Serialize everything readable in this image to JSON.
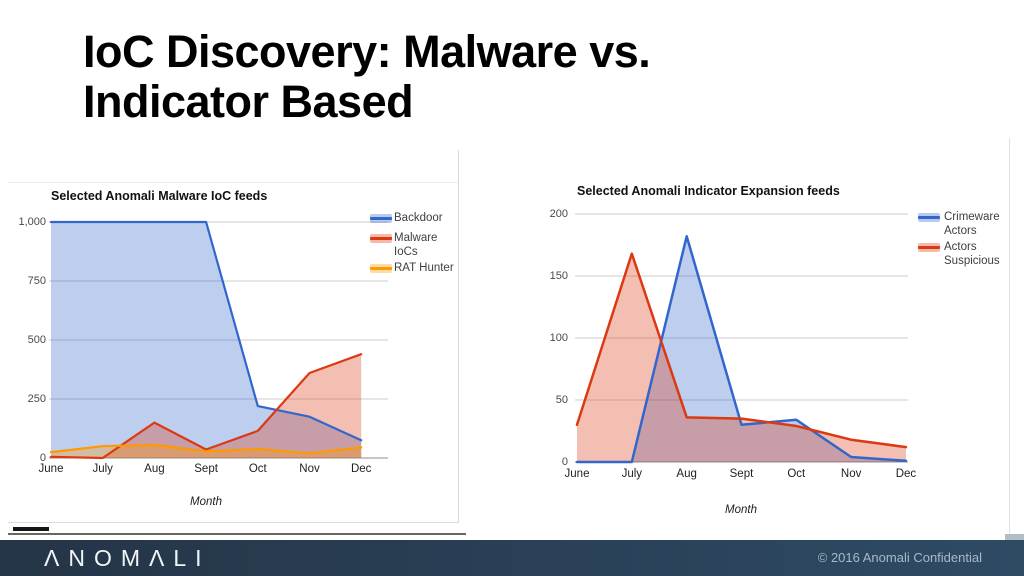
{
  "slide": {
    "title_line1": "IoC Discovery: Malware vs.",
    "title_line2": "Indicator Based"
  },
  "footer": {
    "logo_text": "ANOMALI",
    "copyright": "© 2016 Anomali Confidential",
    "bar_color_left": "#253447",
    "bar_color_right": "#2e4b64"
  },
  "chart_data": [
    {
      "type": "area",
      "title": "Selected Anomali Malware IoC feeds",
      "xlabel": "Month",
      "categories": [
        "June",
        "July",
        "Aug",
        "Sept",
        "Oct",
        "Nov",
        "Dec"
      ],
      "yticks": [
        "0",
        "250",
        "500",
        "750",
        "1,000"
      ],
      "ylim": [
        0,
        1000
      ],
      "grid": true,
      "legend_position": "right",
      "series": [
        {
          "name": "Backdoor",
          "legend_lines": [
            "Backdoor"
          ],
          "color": "#3366cc",
          "values": [
            1000,
            1000,
            1000,
            1000,
            220,
            175,
            75
          ]
        },
        {
          "name": "Malware IoCs",
          "legend_lines": [
            "Malware",
            "IoCs"
          ],
          "color": "#dc3912",
          "values": [
            5,
            0,
            150,
            36,
            115,
            360,
            440
          ]
        },
        {
          "name": "RAT Hunter",
          "legend_lines": [
            "RAT Hunter"
          ],
          "color": "#ff9900",
          "values": [
            25,
            50,
            55,
            28,
            38,
            20,
            45
          ]
        }
      ]
    },
    {
      "type": "area",
      "title": "Selected Anomali Indicator Expansion feeds",
      "xlabel": "Month",
      "categories": [
        "June",
        "July",
        "Aug",
        "Sept",
        "Oct",
        "Nov",
        "Dec"
      ],
      "yticks": [
        "0",
        "50",
        "100",
        "150",
        "200"
      ],
      "ylim": [
        0,
        200
      ],
      "grid": true,
      "legend_position": "right",
      "series": [
        {
          "name": "Crimeware Actors",
          "legend_lines": [
            "Crimeware",
            "Actors"
          ],
          "color": "#3366cc",
          "values": [
            0,
            0,
            182,
            30,
            34,
            4,
            1
          ]
        },
        {
          "name": "Actors Suspicious",
          "legend_lines": [
            "Actors",
            "Suspicious"
          ],
          "color": "#dc3912",
          "values": [
            30,
            168,
            36,
            35,
            29,
            18,
            12
          ]
        }
      ]
    }
  ]
}
